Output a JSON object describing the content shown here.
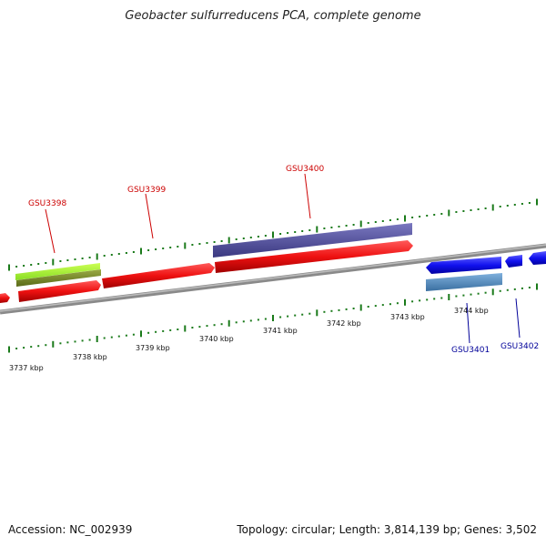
{
  "title": "Geobacter sulfurreducens PCA, complete genome",
  "footer": {
    "accession": "Accession: NC_002939",
    "summary": "Topology: circular; Length: 3,814,139 bp; Genes: 3,502"
  },
  "colors": {
    "backbone": "#8a8a8a",
    "tick": "#1a7a1a",
    "forward_gene": "#ee1111",
    "reverse_gene": "#1111ee",
    "label_top": "#cc0000",
    "label_bottom": "#000099"
  },
  "axis_labels": [
    "3737 kbp",
    "3738 kbp",
    "3739 kbp",
    "3740 kbp",
    "3741 kbp",
    "3742 kbp",
    "3743 kbp",
    "3744 kbp"
  ],
  "gene_labels_top": [
    "GSU3398",
    "GSU3399",
    "GSU3400"
  ],
  "gene_labels_bottom": [
    "GSU3401",
    "GSU3402"
  ]
}
